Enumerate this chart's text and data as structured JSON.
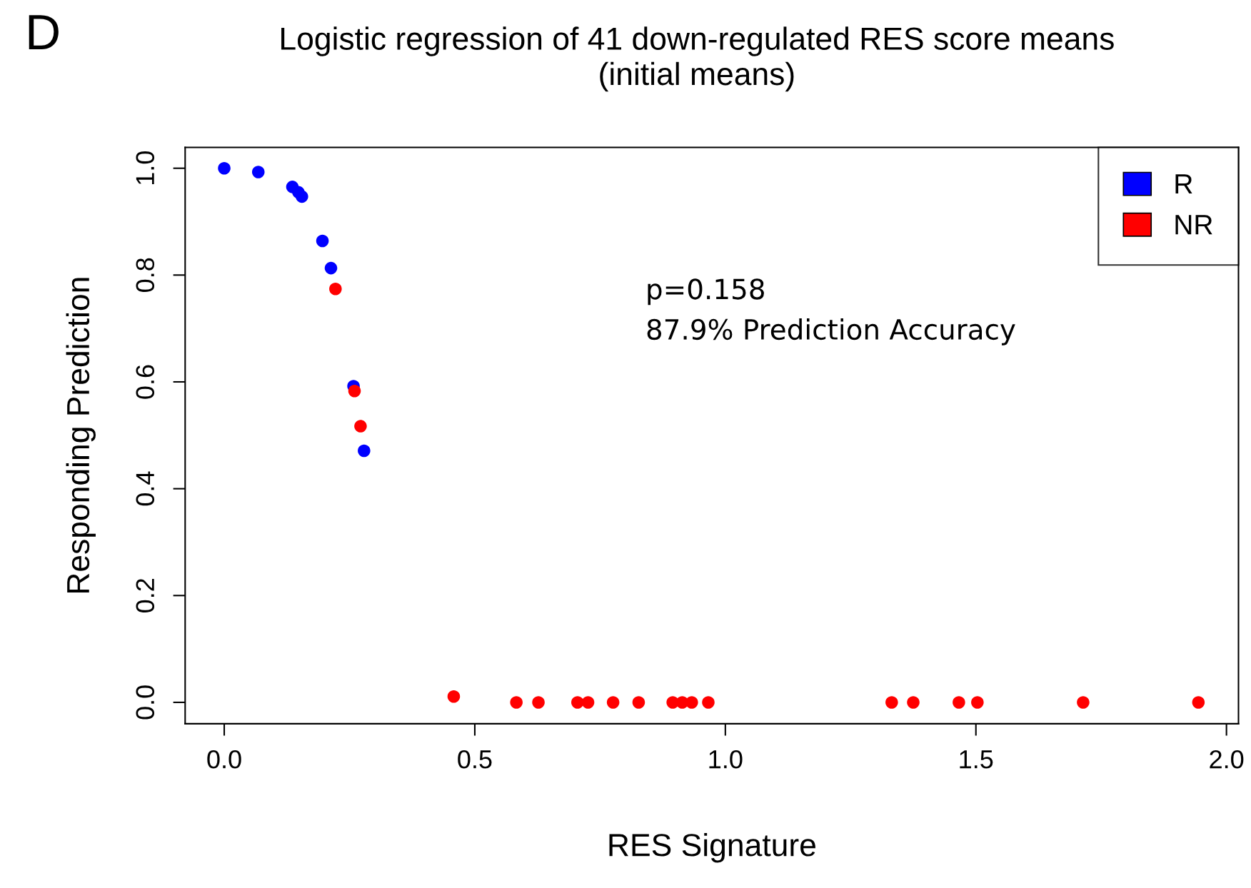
{
  "chart_data": {
    "type": "scatter",
    "title": "Logistic regression of 41 down-regulated RES score means\n(initial means)",
    "xlabel": "RES Signature",
    "ylabel": "Responding Prediction",
    "series": [
      {
        "name": "R",
        "color": "#0000ff",
        "x": [
          0,
          0.068,
          0.136,
          0.148,
          0.155,
          0.196,
          0.213,
          0.258,
          0.279
        ],
        "values": [
          1.0,
          0.993,
          0.965,
          0.955,
          0.947,
          0.864,
          0.813,
          0.592,
          0.471
        ]
      },
      {
        "name": "NR",
        "color": "#ff0000",
        "x": [
          0.222,
          0.26,
          0.272,
          0.458,
          0.583,
          0.627,
          0.705,
          0.726,
          0.776,
          0.827,
          0.895,
          0.914,
          0.933,
          0.966,
          1.332,
          1.375,
          1.466,
          1.503,
          1.714,
          1.944
        ],
        "values": [
          0.774,
          0.583,
          0.517,
          0.011,
          0,
          0,
          0,
          0,
          0,
          0,
          0,
          0,
          0,
          0,
          0,
          0,
          0,
          0,
          0,
          0
        ]
      }
    ],
    "xlim": [
      -0.078,
      2.024
    ],
    "ylim": [
      -0.04,
      1.039
    ],
    "xticks": [
      {
        "value": 0,
        "label": "0.0"
      },
      0.5,
      {
        "value": 1,
        "label": "1.0"
      },
      1.5,
      {
        "value": 2,
        "label": "2.0"
      }
    ],
    "yticks": [
      {
        "value": 0,
        "label": "0.0"
      },
      0.2,
      0.4,
      0.6,
      0.8,
      {
        "value": 1,
        "label": "1.0"
      }
    ],
    "marker": "circle",
    "legend": "top right",
    "grid": false,
    "annotations": [
      "D",
      "p=0.158",
      "87.9% Prediction Accuracy"
    ]
  }
}
